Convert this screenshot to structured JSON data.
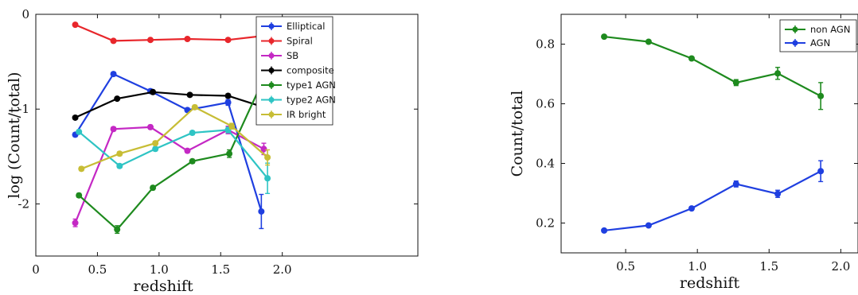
{
  "chart_data": [
    {
      "type": "line",
      "xlabel": "redshift",
      "ylabel": "log (Count/total)",
      "xlim": [
        0,
        3.1
      ],
      "ylim": [
        -2.55,
        0
      ],
      "xticks": [
        0,
        0.5,
        1.0,
        1.5,
        2.0
      ],
      "xtick_labels": [
        "0",
        "0.5",
        "1.0",
        "1.5",
        "2.0"
      ],
      "yticks": [
        0,
        -1,
        -2
      ],
      "ytick_labels": [
        "0",
        "-1",
        "-2"
      ],
      "legend_position": "top-right",
      "series": [
        {
          "name": "Elliptical",
          "color": "#1f3fe0",
          "x": [
            0.32,
            0.63,
            0.93,
            1.23,
            1.56,
            1.83
          ],
          "y": [
            -1.27,
            -0.63,
            -0.81,
            -1.01,
            -0.93,
            -2.08
          ],
          "err": [
            0.02,
            0.02,
            0.02,
            0.02,
            0.03,
            0.18
          ]
        },
        {
          "name": "Spiral",
          "color": "#e8262b",
          "x": [
            0.32,
            0.63,
            0.93,
            1.23,
            1.56,
            1.83
          ],
          "y": [
            -0.11,
            -0.28,
            -0.27,
            -0.26,
            -0.27,
            -0.23
          ],
          "err": [
            0.01,
            0.01,
            0.01,
            0.01,
            0.01,
            0.02
          ]
        },
        {
          "name": "SB",
          "color": "#c428c4",
          "x": [
            0.32,
            0.63,
            0.93,
            1.23,
            1.56,
            1.85
          ],
          "y": [
            -2.2,
            -1.21,
            -1.19,
            -1.44,
            -1.22,
            -1.42
          ],
          "err": [
            0.04,
            0.02,
            0.02,
            0.02,
            0.04,
            0.06
          ]
        },
        {
          "name": "composite",
          "color": "#000000",
          "x": [
            0.32,
            0.66,
            0.95,
            1.25,
            1.56,
            1.85
          ],
          "y": [
            -1.09,
            -0.89,
            -0.82,
            -0.85,
            -0.86,
            -0.98
          ],
          "err": [
            0.01,
            0.01,
            0.01,
            0.01,
            0.02,
            0.05
          ]
        },
        {
          "name": "type1 AGN",
          "color": "#1e8a1e",
          "x": [
            0.35,
            0.66,
            0.95,
            1.27,
            1.57,
            1.86
          ],
          "y": [
            -1.91,
            -2.27,
            -1.83,
            -1.55,
            -1.47,
            -0.65
          ],
          "err": [
            0.02,
            0.04,
            0.02,
            0.02,
            0.04,
            0.04
          ]
        },
        {
          "name": "type2 AGN",
          "color": "#2ec4c4",
          "x": [
            0.35,
            0.68,
            0.97,
            1.27,
            1.56,
            1.88
          ],
          "y": [
            -1.24,
            -1.6,
            -1.42,
            -1.25,
            -1.22,
            -1.73
          ],
          "err": [
            0.02,
            0.02,
            0.02,
            0.02,
            0.03,
            0.16
          ]
        },
        {
          "name": "IR bright",
          "color": "#c7bd35",
          "x": [
            0.37,
            0.68,
            0.97,
            1.29,
            1.59,
            1.88
          ],
          "y": [
            -1.63,
            -1.47,
            -1.36,
            -0.98,
            -1.18,
            -1.51
          ],
          "err": [
            0.02,
            0.02,
            0.02,
            0.02,
            0.03,
            0.08
          ]
        }
      ]
    },
    {
      "type": "line",
      "xlabel": "redshift",
      "ylabel": "Count/total",
      "xlim": [
        0.05,
        2.12
      ],
      "ylim": [
        0.1,
        0.9
      ],
      "xticks": [
        0.5,
        1.0,
        1.5,
        2.0
      ],
      "xtick_labels": [
        "0.5",
        "1.0",
        "1.5",
        "2.0"
      ],
      "yticks": [
        0.2,
        0.4,
        0.6,
        0.8
      ],
      "ytick_labels": [
        "0.2",
        "0.4",
        "0.6",
        "0.8"
      ],
      "legend_position": "top-right",
      "series": [
        {
          "name": "non AGN",
          "color": "#1e8a1e",
          "x": [
            0.35,
            0.66,
            0.96,
            1.27,
            1.56,
            1.86
          ],
          "y": [
            0.825,
            0.808,
            0.752,
            0.671,
            0.702,
            0.626
          ],
          "err": [
            0.004,
            0.005,
            0.006,
            0.01,
            0.02,
            0.045
          ]
        },
        {
          "name": "AGN",
          "color": "#1f3fe0",
          "x": [
            0.35,
            0.66,
            0.96,
            1.27,
            1.56,
            1.86
          ],
          "y": [
            0.175,
            0.192,
            0.249,
            0.331,
            0.298,
            0.374
          ],
          "err": [
            0.004,
            0.005,
            0.006,
            0.01,
            0.012,
            0.035
          ]
        }
      ]
    }
  ]
}
